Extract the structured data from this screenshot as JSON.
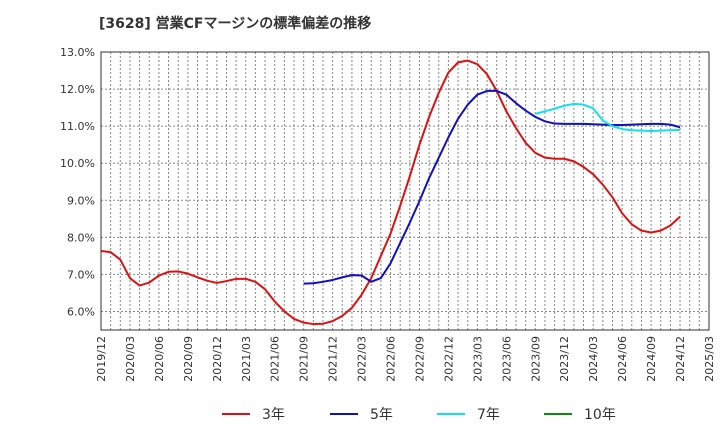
{
  "title": "[3628]  営業CFマージンの標準偏差の推移",
  "chart_data": {
    "type": "line",
    "title": "[3628]  営業CFマージンの標準偏差の推移",
    "xlabel": "",
    "ylabel": "",
    "ylim": [
      5.5,
      13.0
    ],
    "y_ticks": [
      "6.0%",
      "7.0%",
      "8.0%",
      "9.0%",
      "10.0%",
      "11.0%",
      "12.0%",
      "13.0%"
    ],
    "x_ticks": [
      "2019/12",
      "2020/03",
      "2020/06",
      "2020/09",
      "2020/12",
      "2021/03",
      "2021/06",
      "2021/09",
      "2021/12",
      "2022/03",
      "2022/06",
      "2022/09",
      "2022/12",
      "2023/03",
      "2023/06",
      "2023/09",
      "2023/12",
      "2024/03",
      "2024/06",
      "2024/09",
      "2024/12",
      "2025/03"
    ],
    "grid": true,
    "legend_position": "bottom",
    "series": [
      {
        "name": "3年",
        "color": "#dd1111",
        "points": [
          [
            "2019/12",
            7.63
          ],
          [
            "2020/01",
            7.6
          ],
          [
            "2020/02",
            7.4
          ],
          [
            "2020/03",
            6.9
          ],
          [
            "2020/04",
            6.7
          ],
          [
            "2020/05",
            6.78
          ],
          [
            "2020/06",
            6.97
          ],
          [
            "2020/07",
            7.07
          ],
          [
            "2020/08",
            7.08
          ],
          [
            "2020/09",
            7.02
          ],
          [
            "2020/10",
            6.92
          ],
          [
            "2020/11",
            6.83
          ],
          [
            "2020/12",
            6.77
          ],
          [
            "2021/01",
            6.82
          ],
          [
            "2021/02",
            6.88
          ],
          [
            "2021/03",
            6.88
          ],
          [
            "2021/04",
            6.8
          ],
          [
            "2021/05",
            6.6
          ],
          [
            "2021/06",
            6.27
          ],
          [
            "2021/07",
            6.0
          ],
          [
            "2021/08",
            5.8
          ],
          [
            "2021/09",
            5.7
          ],
          [
            "2021/10",
            5.66
          ],
          [
            "2021/11",
            5.67
          ],
          [
            "2021/12",
            5.74
          ],
          [
            "2022/01",
            5.88
          ],
          [
            "2022/02",
            6.1
          ],
          [
            "2022/03",
            6.45
          ],
          [
            "2022/04",
            6.9
          ],
          [
            "2022/05",
            7.5
          ],
          [
            "2022/06",
            8.1
          ],
          [
            "2022/07",
            8.85
          ],
          [
            "2022/08",
            9.65
          ],
          [
            "2022/09",
            10.5
          ],
          [
            "2022/10",
            11.25
          ],
          [
            "2022/11",
            11.9
          ],
          [
            "2022/12",
            12.45
          ],
          [
            "2023/01",
            12.72
          ],
          [
            "2023/02",
            12.77
          ],
          [
            "2023/03",
            12.67
          ],
          [
            "2023/04",
            12.4
          ],
          [
            "2023/05",
            11.95
          ],
          [
            "2023/06",
            11.4
          ],
          [
            "2023/07",
            10.95
          ],
          [
            "2023/08",
            10.55
          ],
          [
            "2023/09",
            10.28
          ],
          [
            "2023/10",
            10.15
          ],
          [
            "2023/11",
            10.12
          ],
          [
            "2023/12",
            10.12
          ],
          [
            "2024/01",
            10.05
          ],
          [
            "2024/02",
            9.9
          ],
          [
            "2024/03",
            9.7
          ],
          [
            "2024/04",
            9.42
          ],
          [
            "2024/05",
            9.08
          ],
          [
            "2024/06",
            8.65
          ],
          [
            "2024/07",
            8.35
          ],
          [
            "2024/08",
            8.18
          ],
          [
            "2024/09",
            8.13
          ],
          [
            "2024/10",
            8.18
          ],
          [
            "2024/11",
            8.32
          ],
          [
            "2024/12",
            8.56
          ]
        ]
      },
      {
        "name": "5年",
        "color": "#1111bb",
        "points": [
          [
            "2021/09",
            6.75
          ],
          [
            "2021/10",
            6.76
          ],
          [
            "2021/11",
            6.8
          ],
          [
            "2021/12",
            6.85
          ],
          [
            "2022/01",
            6.92
          ],
          [
            "2022/02",
            6.98
          ],
          [
            "2022/03",
            6.97
          ],
          [
            "2022/04",
            6.8
          ],
          [
            "2022/05",
            6.9
          ],
          [
            "2022/06",
            7.3
          ],
          [
            "2022/07",
            7.85
          ],
          [
            "2022/08",
            8.4
          ],
          [
            "2022/09",
            8.98
          ],
          [
            "2022/10",
            9.6
          ],
          [
            "2022/11",
            10.15
          ],
          [
            "2022/12",
            10.7
          ],
          [
            "2023/01",
            11.2
          ],
          [
            "2023/02",
            11.58
          ],
          [
            "2023/03",
            11.85
          ],
          [
            "2023/04",
            11.95
          ],
          [
            "2023/05",
            11.95
          ],
          [
            "2023/06",
            11.85
          ],
          [
            "2023/07",
            11.62
          ],
          [
            "2023/08",
            11.42
          ],
          [
            "2023/09",
            11.25
          ],
          [
            "2023/10",
            11.13
          ],
          [
            "2023/11",
            11.07
          ],
          [
            "2023/12",
            11.06
          ],
          [
            "2024/01",
            11.06
          ],
          [
            "2024/02",
            11.06
          ],
          [
            "2024/03",
            11.05
          ],
          [
            "2024/04",
            11.04
          ],
          [
            "2024/05",
            11.03
          ],
          [
            "2024/06",
            11.03
          ],
          [
            "2024/07",
            11.04
          ],
          [
            "2024/08",
            11.05
          ],
          [
            "2024/09",
            11.06
          ],
          [
            "2024/10",
            11.06
          ],
          [
            "2024/11",
            11.04
          ],
          [
            "2024/12",
            10.97
          ]
        ]
      },
      {
        "name": "7年",
        "color": "#11e0ee",
        "points": [
          [
            "2023/09",
            11.33
          ],
          [
            "2023/10",
            11.4
          ],
          [
            "2023/11",
            11.47
          ],
          [
            "2023/12",
            11.55
          ],
          [
            "2024/01",
            11.6
          ],
          [
            "2024/02",
            11.58
          ],
          [
            "2024/03",
            11.48
          ],
          [
            "2024/04",
            11.15
          ],
          [
            "2024/05",
            11.0
          ],
          [
            "2024/06",
            10.92
          ],
          [
            "2024/07",
            10.89
          ],
          [
            "2024/08",
            10.88
          ],
          [
            "2024/09",
            10.87
          ],
          [
            "2024/10",
            10.88
          ],
          [
            "2024/11",
            10.89
          ],
          [
            "2024/12",
            10.9
          ]
        ]
      },
      {
        "name": "10年",
        "color": "#118811",
        "points": []
      }
    ]
  }
}
